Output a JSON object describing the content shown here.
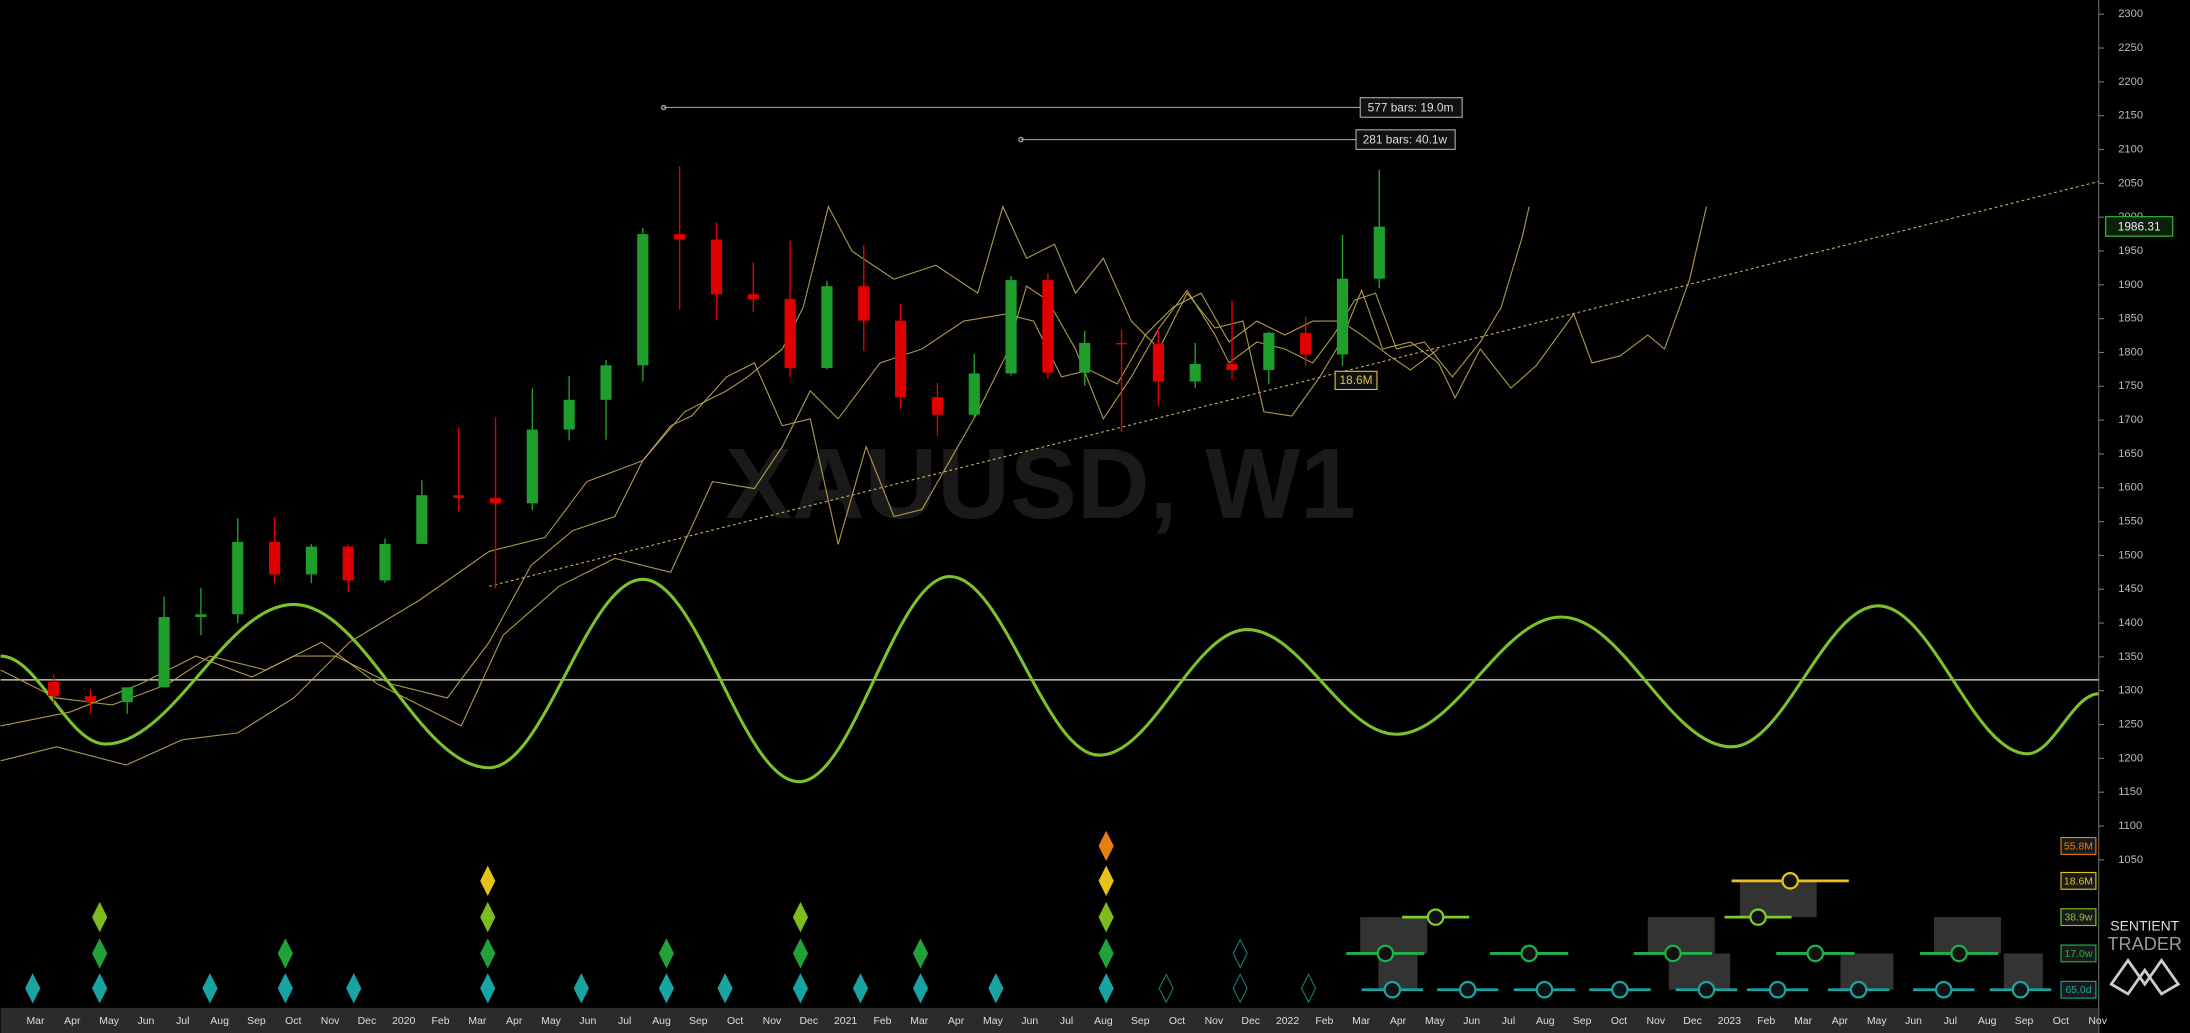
{
  "chart_data": {
    "type": "candlestick",
    "watermark": "XAUUSD, W1",
    "categories": [
      "Mar",
      "Apr",
      "May",
      "Jun",
      "Jul",
      "Aug",
      "Sep",
      "Oct",
      "Nov",
      "Dec",
      "2020",
      "Feb",
      "Mar",
      "Apr",
      "May",
      "Jun",
      "Jul",
      "Aug",
      "Sep",
      "Oct",
      "Nov",
      "Dec",
      "2021",
      "Feb",
      "Mar",
      "Apr",
      "May",
      "Jun",
      "Jul",
      "Aug",
      "Sep",
      "Oct",
      "Nov",
      "Dec",
      "2022",
      "Feb",
      "Mar",
      "Apr",
      "May",
      "Jun",
      "Jul",
      "Aug",
      "Sep",
      "Oct",
      "Nov",
      "Dec",
      "2023",
      "Feb",
      "Mar",
      "Apr",
      "May",
      "Jun",
      "Jul",
      "Aug",
      "Sep",
      "Oct",
      "Nov"
    ],
    "open": [
      1313,
      1292,
      1283,
      1305,
      1409,
      1413,
      1520,
      1472,
      1513,
      1463,
      1517,
      1589,
      1585,
      1577,
      1686,
      1730,
      1781,
      1975,
      1967,
      1886,
      1879,
      1777,
      1898,
      1847,
      1734,
      1708,
      1769,
      1907,
      1770,
      1814,
      1813,
      1757,
      1783,
      1774,
      1829,
      1797,
      1909,
      null,
      null,
      null,
      null,
      null,
      null,
      null,
      null,
      null,
      null,
      null,
      null,
      null,
      null,
      null,
      null,
      null,
      null,
      null,
      null
    ],
    "high": [
      1324,
      1303,
      1305,
      1439,
      1452,
      1555,
      1557,
      1517,
      1516,
      1525,
      1611,
      1689,
      1704,
      1747,
      1765,
      1789,
      1984,
      2075,
      1992,
      1933,
      1965,
      1906,
      1959,
      1872,
      1755,
      1798,
      1913,
      1917,
      1832,
      1834,
      1835,
      1814,
      1877,
      1831,
      1853,
      1974,
      2070,
      null,
      null,
      null,
      null,
      null,
      null,
      null,
      null,
      null,
      null,
      null,
      null,
      null,
      null,
      null,
      null,
      null,
      null,
      null,
      null
    ],
    "low": [
      1281,
      1266,
      1266,
      1305,
      1382,
      1400,
      1459,
      1459,
      1446,
      1459,
      1517,
      1565,
      1451,
      1567,
      1670,
      1671,
      1757,
      1863,
      1848,
      1860,
      1764,
      1775,
      1802,
      1717,
      1677,
      1705,
      1766,
      1761,
      1751,
      1682,
      1721,
      1747,
      1761,
      1753,
      1781,
      1780,
      1895,
      null,
      null,
      null,
      null,
      null,
      null,
      null,
      null,
      null,
      null,
      null,
      null,
      null,
      null,
      null,
      null,
      null,
      null,
      null,
      null
    ],
    "close": [
      1292,
      1283,
      1305,
      1409,
      1413,
      1520,
      1472,
      1513,
      1463,
      1517,
      1589,
      1585,
      1577,
      1686,
      1730,
      1781,
      1975,
      1967,
      1886,
      1879,
      1777,
      1898,
      1847,
      1734,
      1708,
      1769,
      1907,
      1770,
      1814,
      1813,
      1757,
      1783,
      1774,
      1829,
      1797,
      1909,
      1986,
      null,
      null,
      null,
      null,
      null,
      null,
      null,
      null,
      null,
      null,
      null,
      null,
      null,
      null,
      null,
      null,
      null,
      null,
      null,
      null
    ],
    "up_color": "#1f9e2c",
    "down_color": "#e00000",
    "ylim": [
      825,
      2321
    ],
    "yticks": [
      1050,
      1100,
      1150,
      1200,
      1250,
      1300,
      1350,
      1400,
      1450,
      1500,
      1550,
      1600,
      1650,
      1700,
      1750,
      1800,
      1850,
      1900,
      1950,
      2000,
      2050,
      2100,
      2150,
      2200,
      2250,
      2300
    ],
    "last_price": 1986.31,
    "reference_line": 1316,
    "annotations": [
      "577 bars: 19.0m",
      "281 bars: 40.1w",
      "18.6M"
    ],
    "cycle_labels": [
      "55.8M",
      "18.6M",
      "38.9w",
      "17.0w",
      "65.0d"
    ],
    "logo": [
      "SENTIENT",
      "TRADER"
    ]
  }
}
